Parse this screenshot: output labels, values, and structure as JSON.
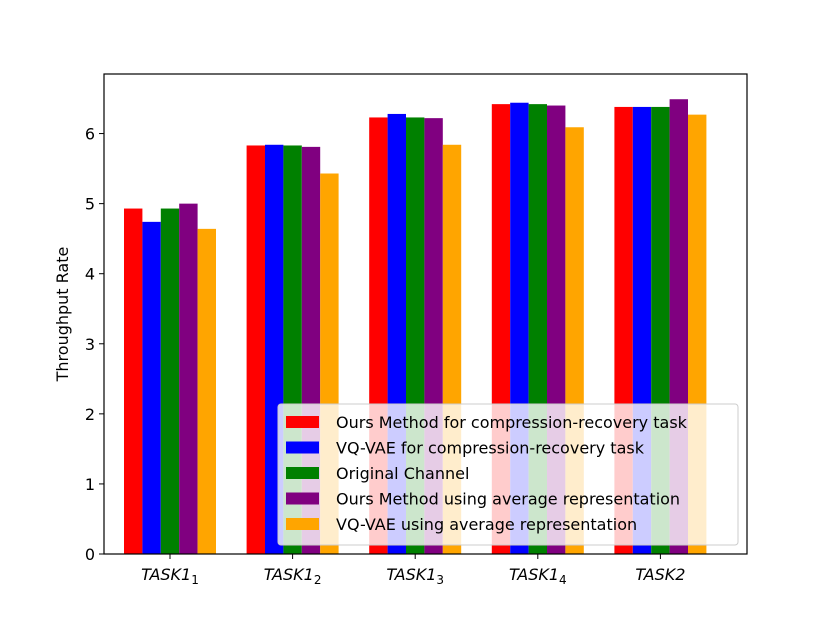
{
  "chart_data": {
    "type": "bar",
    "ylabel": "Throughput Rate",
    "xlabel": "",
    "title": "",
    "ylim": [
      0,
      6.85
    ],
    "yticks": [
      0,
      1,
      2,
      3,
      4,
      5,
      6
    ],
    "categories": [
      {
        "base": "TASK1",
        "sub": "1"
      },
      {
        "base": "TASK1",
        "sub": "2"
      },
      {
        "base": "TASK1",
        "sub": "3"
      },
      {
        "base": "TASK1",
        "sub": "4"
      },
      {
        "base": "TASK2",
        "sub": ""
      }
    ],
    "series": [
      {
        "name": "Ours Method for compression-recovery task",
        "color": "#ff0000",
        "values": [
          4.93,
          5.83,
          6.23,
          6.42,
          6.38
        ]
      },
      {
        "name": "VQ-VAE for compression-recovery task",
        "color": "#0000ff",
        "values": [
          4.74,
          5.84,
          6.28,
          6.44,
          6.38
        ]
      },
      {
        "name": "Original Channel",
        "color": "#008000",
        "values": [
          4.93,
          5.83,
          6.23,
          6.42,
          6.38
        ]
      },
      {
        "name": "Ours Method using average representation",
        "color": "#800080",
        "values": [
          5.0,
          5.81,
          6.22,
          6.4,
          6.49
        ]
      },
      {
        "name": "VQ-VAE using average representation",
        "color": "#ffa500",
        "values": [
          4.64,
          5.43,
          5.84,
          6.09,
          6.27
        ]
      }
    ],
    "legend_position": "lower right",
    "grid": false
  }
}
